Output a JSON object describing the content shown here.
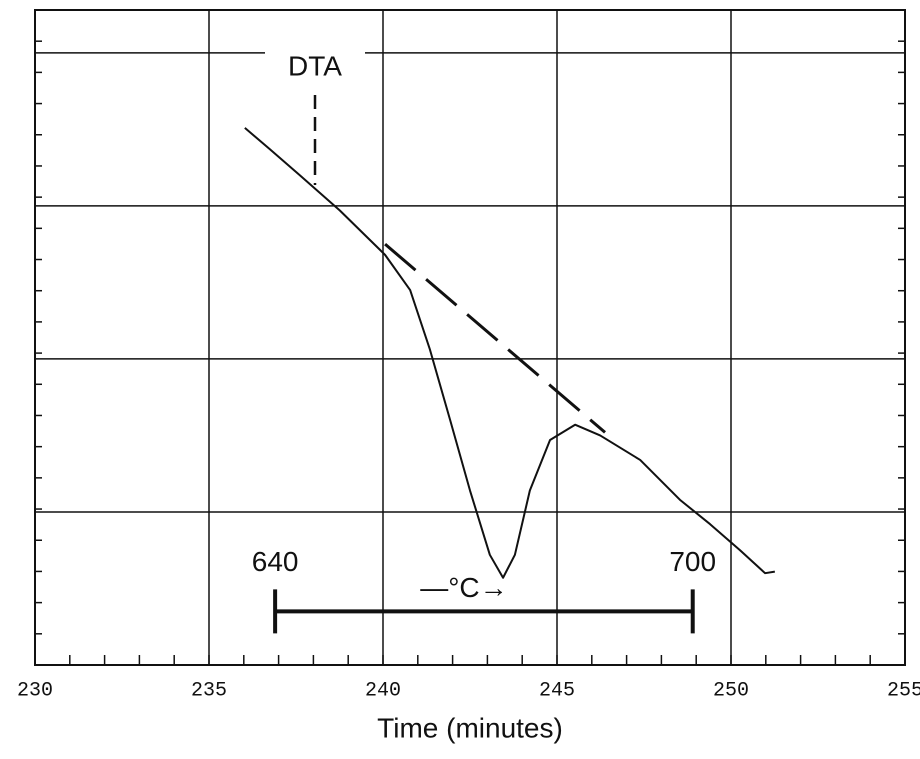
{
  "chart_data": {
    "type": "line",
    "xlabel": "Time (minutes)",
    "xlim": [
      230,
      255
    ],
    "xticks": [
      230,
      235,
      240,
      245,
      250,
      255
    ],
    "ylim": [
      0,
      4.28
    ],
    "ygrid": [
      1,
      2,
      3,
      4
    ],
    "grid": true,
    "series": [
      {
        "name": "DTA",
        "color": "#111111",
        "x": [
          236.03,
          236.75,
          237.61,
          238.76,
          240.06,
          240.78,
          241.35,
          241.93,
          242.5,
          243.07,
          243.45,
          243.79,
          244.22,
          244.8,
          245.52,
          246.24,
          247.39,
          248.53,
          249.4,
          250.26,
          250.98,
          251.26
        ],
        "values": [
          3.51,
          3.37,
          3.2,
          2.97,
          2.68,
          2.45,
          2.06,
          1.6,
          1.14,
          0.72,
          0.57,
          0.72,
          1.14,
          1.47,
          1.57,
          1.5,
          1.34,
          1.08,
          0.92,
          0.75,
          0.6,
          0.61
        ]
      },
      {
        "color": "#111111",
        "dashed": true,
        "x": [
          240.06,
          246.38
        ],
        "values": [
          2.75,
          1.52
        ]
      }
    ],
    "temperature_scale": {
      "unit": "—°C→",
      "labels": [
        640,
        700
      ],
      "x": [
        236.9,
        248.9
      ],
      "y": 0.35
    }
  }
}
